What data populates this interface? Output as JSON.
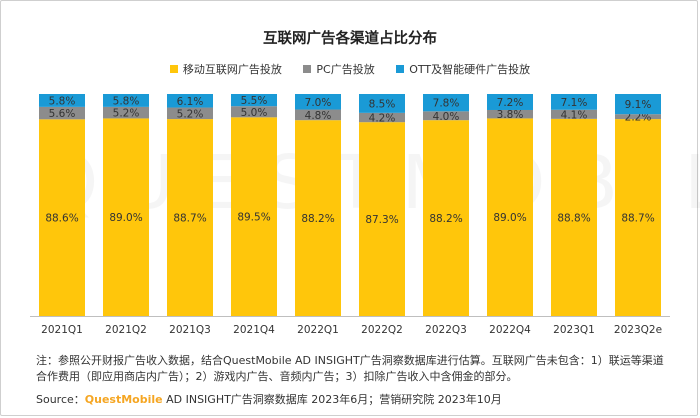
{
  "colors": {
    "mobile": "#FFC60B",
    "pc": "#8C8C8C",
    "ott": "#1A9AD6",
    "brand": "#F5A623"
  },
  "watermark_text": "QUESTMOBILE",
  "footnote": "注：参照公开财报广告收入数据，结合QuestMobile AD INSIGHT广告洞察数据库进行估算。互联网广告未包含：1）联运等渠道合作费用（即应用商店内广告）；2）游戏内广告、音频内广告；3）扣除广告收入中含佣金的部分。",
  "source": {
    "prefix": "Source：",
    "brand": "QuestMobile",
    "rest": " AD INSIGHT广告洞察数据库 2023年6月；营销研究院 2023年10月"
  },
  "chart_data": {
    "type": "bar",
    "stacked": true,
    "percent_stacked": true,
    "title": "互联网广告各渠道占比分布",
    "legend_position": "top",
    "grid": false,
    "ylim": [
      0,
      100
    ],
    "categories": [
      "2021Q1",
      "2021Q2",
      "2021Q3",
      "2021Q4",
      "2022Q1",
      "2022Q2",
      "2022Q3",
      "2022Q4",
      "2023Q1",
      "2023Q2e"
    ],
    "series": [
      {
        "name": "移动互联网广告投放",
        "color": "#FFC60B",
        "values": [
          88.6,
          89.0,
          88.7,
          89.5,
          88.2,
          87.3,
          88.2,
          89.0,
          88.8,
          88.7
        ],
        "labels": [
          "88.6%",
          "89.0%",
          "88.7%",
          "89.5%",
          "88.2%",
          "87.3%",
          "88.2%",
          "89.0%",
          "88.8%",
          "88.7%"
        ]
      },
      {
        "name": "PC广告投放",
        "color": "#8C8C8C",
        "values": [
          5.6,
          5.2,
          5.2,
          5.0,
          4.8,
          4.2,
          4.0,
          3.8,
          4.1,
          2.2
        ],
        "labels": [
          "5.6%",
          "5.2%",
          "5.2%",
          "5.0%",
          "4.8%",
          "4.2%",
          "4.0%",
          "3.8%",
          "4.1%",
          "2.2%"
        ]
      },
      {
        "name": "OTT及智能硬件广告投放",
        "color": "#1A9AD6",
        "values": [
          5.8,
          5.8,
          6.1,
          5.5,
          7.0,
          8.5,
          7.8,
          7.2,
          7.1,
          9.1
        ],
        "labels": [
          "5.8%",
          "5.8%",
          "6.1%",
          "5.5%",
          "7.0%",
          "8.5%",
          "7.8%",
          "7.2%",
          "7.1%",
          "9.1%"
        ]
      }
    ]
  }
}
